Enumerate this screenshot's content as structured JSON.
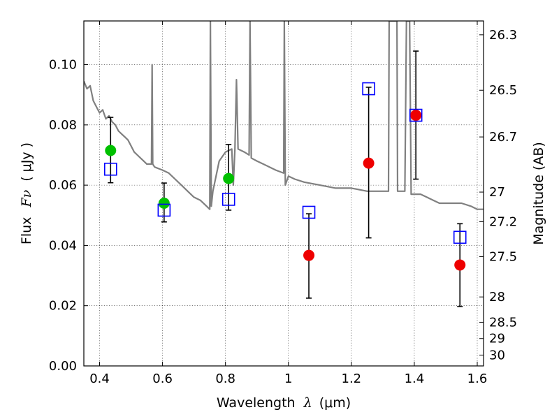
{
  "chart_data": {
    "type": "scatter",
    "xlabel_prefix": "Wavelength",
    "xlabel_symbol": "λ",
    "xlabel_unit": "(μm)",
    "ylabel_prefix": "Flux",
    "ylabel_symbol": "Fν",
    "ylabel_unit": "( μJy )",
    "y2label": "Magnitude (AB)",
    "xlim": [
      0.35,
      1.62
    ],
    "ylim": [
      0.0,
      0.1145
    ],
    "x_ticks": [
      0.4,
      0.6,
      0.8,
      1.0,
      1.2,
      1.4,
      1.6
    ],
    "x_tick_labels": [
      "0.4",
      "0.6",
      "0.8",
      "1",
      "1.2",
      "1.4",
      "1.6"
    ],
    "y_ticks": [
      0.0,
      0.02,
      0.04,
      0.06,
      0.08,
      0.1
    ],
    "y_tick_labels": [
      "0.00",
      "0.02",
      "0.04",
      "0.06",
      "0.08",
      "0.10"
    ],
    "y2_ticks": [
      {
        "label": "26.3",
        "flux": 0.1099
      },
      {
        "label": "26.5",
        "flux": 0.0915
      },
      {
        "label": "26.7",
        "flux": 0.076
      },
      {
        "label": "27",
        "flux": 0.0577
      },
      {
        "label": "27.2",
        "flux": 0.0479
      },
      {
        "label": "27.5",
        "flux": 0.0363
      },
      {
        "label": "28",
        "flux": 0.0229
      },
      {
        "label": "28.5",
        "flux": 0.0145
      },
      {
        "label": "29",
        "flux": 0.0091
      },
      {
        "label": "30",
        "flux": 0.0036
      }
    ],
    "grid": true,
    "template_spectrum": {
      "color": "#808080",
      "points": [
        [
          0.35,
          0.0945
        ],
        [
          0.36,
          0.092
        ],
        [
          0.37,
          0.093
        ],
        [
          0.38,
          0.088
        ],
        [
          0.39,
          0.086
        ],
        [
          0.4,
          0.084
        ],
        [
          0.41,
          0.085
        ],
        [
          0.42,
          0.082
        ],
        [
          0.43,
          0.083
        ],
        [
          0.44,
          0.081
        ],
        [
          0.45,
          0.08
        ],
        [
          0.46,
          0.078
        ],
        [
          0.47,
          0.077
        ],
        [
          0.48,
          0.076
        ],
        [
          0.49,
          0.075
        ],
        [
          0.5,
          0.073
        ],
        [
          0.51,
          0.071
        ],
        [
          0.52,
          0.07
        ],
        [
          0.53,
          0.069
        ],
        [
          0.54,
          0.068
        ],
        [
          0.55,
          0.067
        ],
        [
          0.56,
          0.067
        ],
        [
          0.565,
          0.067
        ],
        [
          0.567,
          0.1
        ],
        [
          0.569,
          0.067
        ],
        [
          0.575,
          0.066
        ],
        [
          0.6,
          0.065
        ],
        [
          0.62,
          0.064
        ],
        [
          0.64,
          0.062
        ],
        [
          0.66,
          0.06
        ],
        [
          0.68,
          0.058
        ],
        [
          0.7,
          0.056
        ],
        [
          0.72,
          0.055
        ],
        [
          0.74,
          0.053
        ],
        [
          0.75,
          0.052
        ],
        [
          0.752,
          0.1145
        ],
        [
          0.755,
          0.053
        ],
        [
          0.76,
          0.058
        ],
        [
          0.78,
          0.068
        ],
        [
          0.8,
          0.071
        ],
        [
          0.82,
          0.072
        ],
        [
          0.825,
          0.06
        ],
        [
          0.83,
          0.072
        ],
        [
          0.835,
          0.095
        ],
        [
          0.84,
          0.072
        ],
        [
          0.86,
          0.071
        ],
        [
          0.875,
          0.07
        ],
        [
          0.878,
          0.1145
        ],
        [
          0.882,
          0.069
        ],
        [
          0.9,
          0.068
        ],
        [
          0.92,
          0.067
        ],
        [
          0.94,
          0.066
        ],
        [
          0.96,
          0.065
        ],
        [
          0.985,
          0.064
        ],
        [
          0.987,
          0.1145
        ],
        [
          0.99,
          0.06
        ],
        [
          1.0,
          0.063
        ],
        [
          1.02,
          0.062
        ],
        [
          1.05,
          0.061
        ],
        [
          1.1,
          0.06
        ],
        [
          1.15,
          0.059
        ],
        [
          1.2,
          0.059
        ],
        [
          1.25,
          0.058
        ],
        [
          1.3,
          0.058
        ],
        [
          1.318,
          0.058
        ],
        [
          1.32,
          0.1145
        ],
        [
          1.345,
          0.1145
        ],
        [
          1.347,
          0.058
        ],
        [
          1.37,
          0.058
        ],
        [
          1.375,
          0.1145
        ],
        [
          1.385,
          0.1145
        ],
        [
          1.39,
          0.057
        ],
        [
          1.42,
          0.057
        ],
        [
          1.44,
          0.056
        ],
        [
          1.46,
          0.055
        ],
        [
          1.48,
          0.054
        ],
        [
          1.5,
          0.054
        ],
        [
          1.52,
          0.054
        ],
        [
          1.55,
          0.054
        ],
        [
          1.58,
          0.053
        ],
        [
          1.6,
          0.052
        ],
        [
          1.62,
          0.052
        ]
      ]
    },
    "series": [
      {
        "marker": "square",
        "edge_color": "#0000ff",
        "points": [
          {
            "x": 0.435,
            "y": 0.0653
          },
          {
            "x": 0.605,
            "y": 0.0517
          },
          {
            "x": 0.81,
            "y": 0.0553
          },
          {
            "x": 1.065,
            "y": 0.051
          },
          {
            "x": 1.255,
            "y": 0.092
          },
          {
            "x": 1.405,
            "y": 0.0832
          },
          {
            "x": 1.545,
            "y": 0.0427
          }
        ]
      },
      {
        "marker": "circle",
        "color": "#00c000",
        "points": [
          {
            "x": 0.435,
            "y": 0.0715,
            "err_low": 0.0608,
            "err_high": 0.0825
          },
          {
            "x": 0.605,
            "y": 0.054,
            "err_low": 0.0478,
            "err_high": 0.0607
          },
          {
            "x": 0.81,
            "y": 0.0622,
            "err_low": 0.0517,
            "err_high": 0.0735
          }
        ]
      },
      {
        "marker": "circle",
        "color": "#ee0000",
        "points": [
          {
            "x": 1.065,
            "y": 0.0367,
            "err_low": 0.0225,
            "err_high": 0.0505
          },
          {
            "x": 1.255,
            "y": 0.0673,
            "err_low": 0.0425,
            "err_high": 0.0925
          },
          {
            "x": 1.405,
            "y": 0.0832,
            "err_low": 0.062,
            "err_high": 0.1045
          },
          {
            "x": 1.545,
            "y": 0.0335,
            "err_low": 0.0197,
            "err_high": 0.0472
          }
        ]
      }
    ]
  }
}
